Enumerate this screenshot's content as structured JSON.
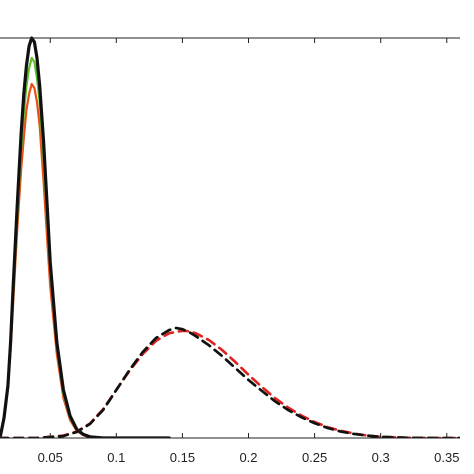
{
  "chart_data": {
    "type": "line",
    "title": "",
    "xlabel": "",
    "ylabel": "",
    "xlim": [
      0.012,
      0.36
    ],
    "ylim": [
      0,
      1.0
    ],
    "grid": false,
    "legend": "none",
    "xticks": [
      "0.05",
      "0.1",
      "0.15",
      "0.2",
      "0.25",
      "0.3",
      "0.35"
    ],
    "xtick_values": [
      0.05,
      0.1,
      0.15,
      0.2,
      0.25,
      0.3,
      0.35
    ],
    "series": [
      {
        "color": "#e8501a",
        "style": "solid",
        "width": 2.2,
        "x": [
          0.012,
          0.015,
          0.018,
          0.02,
          0.022,
          0.025,
          0.028,
          0.03,
          0.032,
          0.034,
          0.036,
          0.038,
          0.04,
          0.042,
          0.045,
          0.048,
          0.05,
          0.055,
          0.06,
          0.065,
          0.07,
          0.075,
          0.08,
          0.09,
          0.1
        ],
        "y": [
          0.0,
          0.05,
          0.13,
          0.22,
          0.34,
          0.52,
          0.67,
          0.75,
          0.82,
          0.86,
          0.885,
          0.875,
          0.84,
          0.78,
          0.64,
          0.48,
          0.38,
          0.21,
          0.1,
          0.045,
          0.018,
          0.007,
          0.002,
          0.0,
          0.0
        ]
      },
      {
        "color": "#5cbf2a",
        "style": "solid",
        "width": 2.2,
        "x": [
          0.012,
          0.015,
          0.018,
          0.02,
          0.022,
          0.025,
          0.028,
          0.03,
          0.032,
          0.034,
          0.036,
          0.038,
          0.04,
          0.042,
          0.045,
          0.048,
          0.05,
          0.055,
          0.06,
          0.065,
          0.07,
          0.075,
          0.08,
          0.09,
          0.1
        ],
        "y": [
          0.0,
          0.05,
          0.13,
          0.23,
          0.36,
          0.55,
          0.72,
          0.81,
          0.88,
          0.925,
          0.95,
          0.94,
          0.9,
          0.84,
          0.7,
          0.53,
          0.42,
          0.23,
          0.11,
          0.05,
          0.02,
          0.008,
          0.003,
          0.0,
          0.0
        ]
      },
      {
        "color": "#2a5fd6",
        "style": "solid",
        "width": 2.2,
        "x": [
          0.012,
          0.015,
          0.018,
          0.02,
          0.022,
          0.025,
          0.028,
          0.03,
          0.032,
          0.034,
          0.036,
          0.038,
          0.04,
          0.042,
          0.045,
          0.048,
          0.05,
          0.055,
          0.06,
          0.065,
          0.07,
          0.075,
          0.08,
          0.09,
          0.1
        ],
        "y": [
          0.0,
          0.05,
          0.13,
          0.24,
          0.38,
          0.58,
          0.76,
          0.86,
          0.93,
          0.98,
          1.0,
          0.99,
          0.95,
          0.88,
          0.74,
          0.56,
          0.44,
          0.24,
          0.12,
          0.055,
          0.022,
          0.009,
          0.003,
          0.0,
          0.0
        ]
      },
      {
        "color": "#111111",
        "style": "solid",
        "width": 3.2,
        "x": [
          0.012,
          0.015,
          0.018,
          0.02,
          0.022,
          0.025,
          0.028,
          0.03,
          0.032,
          0.034,
          0.036,
          0.038,
          0.04,
          0.042,
          0.045,
          0.048,
          0.05,
          0.055,
          0.06,
          0.065,
          0.07,
          0.075,
          0.08,
          0.09,
          0.1,
          0.12,
          0.14
        ],
        "y": [
          0.0,
          0.05,
          0.13,
          0.24,
          0.38,
          0.58,
          0.76,
          0.86,
          0.93,
          0.98,
          1.0,
          0.99,
          0.95,
          0.88,
          0.74,
          0.56,
          0.44,
          0.24,
          0.12,
          0.055,
          0.022,
          0.009,
          0.003,
          0.0,
          0.0,
          0.0,
          0.0
        ]
      },
      {
        "color": "#2a5fd6",
        "style": "dashed",
        "width": 2.6,
        "x": [
          0.0,
          0.04,
          0.06,
          0.07,
          0.08,
          0.09,
          0.1,
          0.11,
          0.12,
          0.13,
          0.14,
          0.145,
          0.15,
          0.155,
          0.16,
          0.17,
          0.18,
          0.19,
          0.2,
          0.21,
          0.22,
          0.23,
          0.24,
          0.25,
          0.26,
          0.27,
          0.28,
          0.29,
          0.3,
          0.32,
          0.34,
          0.36
        ],
        "y": [
          0.0,
          0.0,
          0.005,
          0.015,
          0.035,
          0.07,
          0.12,
          0.17,
          0.215,
          0.25,
          0.27,
          0.275,
          0.272,
          0.265,
          0.255,
          0.232,
          0.205,
          0.175,
          0.145,
          0.118,
          0.092,
          0.07,
          0.052,
          0.037,
          0.025,
          0.016,
          0.01,
          0.006,
          0.003,
          0.0005,
          0.0,
          0.0
        ]
      },
      {
        "color": "#9ad832",
        "style": "dashed",
        "width": 2.6,
        "x": [
          0.0,
          0.04,
          0.06,
          0.07,
          0.08,
          0.09,
          0.1,
          0.11,
          0.12,
          0.13,
          0.14,
          0.145,
          0.15,
          0.155,
          0.16,
          0.17,
          0.18,
          0.19,
          0.2,
          0.21,
          0.22,
          0.23,
          0.24,
          0.25,
          0.26,
          0.27,
          0.28,
          0.29,
          0.3,
          0.32,
          0.34,
          0.36
        ],
        "y": [
          0.0,
          0.0,
          0.005,
          0.015,
          0.035,
          0.07,
          0.12,
          0.17,
          0.215,
          0.25,
          0.27,
          0.275,
          0.272,
          0.265,
          0.255,
          0.232,
          0.205,
          0.175,
          0.145,
          0.118,
          0.092,
          0.07,
          0.052,
          0.037,
          0.025,
          0.016,
          0.01,
          0.006,
          0.003,
          0.0005,
          0.0,
          0.0
        ]
      },
      {
        "color": "#e02020",
        "style": "dashed",
        "width": 2.6,
        "x": [
          0.0,
          0.04,
          0.06,
          0.07,
          0.08,
          0.09,
          0.1,
          0.11,
          0.12,
          0.13,
          0.14,
          0.15,
          0.155,
          0.16,
          0.17,
          0.18,
          0.19,
          0.2,
          0.21,
          0.22,
          0.23,
          0.24,
          0.25,
          0.26,
          0.27,
          0.28,
          0.29,
          0.3,
          0.32,
          0.34,
          0.36
        ],
        "y": [
          0.0,
          0.0,
          0.006,
          0.016,
          0.036,
          0.072,
          0.12,
          0.168,
          0.21,
          0.243,
          0.262,
          0.268,
          0.267,
          0.262,
          0.245,
          0.22,
          0.19,
          0.158,
          0.128,
          0.1,
          0.076,
          0.056,
          0.04,
          0.027,
          0.018,
          0.011,
          0.006,
          0.003,
          0.0006,
          0.0,
          0.0
        ]
      },
      {
        "color": "#111111",
        "style": "dashed",
        "width": 2.6,
        "x": [
          0.0,
          0.04,
          0.06,
          0.07,
          0.08,
          0.09,
          0.1,
          0.11,
          0.12,
          0.13,
          0.14,
          0.145,
          0.15,
          0.155,
          0.16,
          0.17,
          0.18,
          0.19,
          0.2,
          0.21,
          0.22,
          0.23,
          0.24,
          0.25,
          0.26,
          0.27,
          0.28,
          0.29,
          0.3,
          0.32,
          0.34,
          0.36
        ],
        "y": [
          0.0,
          0.0,
          0.005,
          0.015,
          0.035,
          0.07,
          0.12,
          0.17,
          0.215,
          0.25,
          0.27,
          0.275,
          0.272,
          0.265,
          0.255,
          0.232,
          0.205,
          0.175,
          0.145,
          0.118,
          0.092,
          0.07,
          0.052,
          0.037,
          0.025,
          0.016,
          0.01,
          0.006,
          0.003,
          0.0005,
          0.0,
          0.0
        ]
      }
    ]
  }
}
